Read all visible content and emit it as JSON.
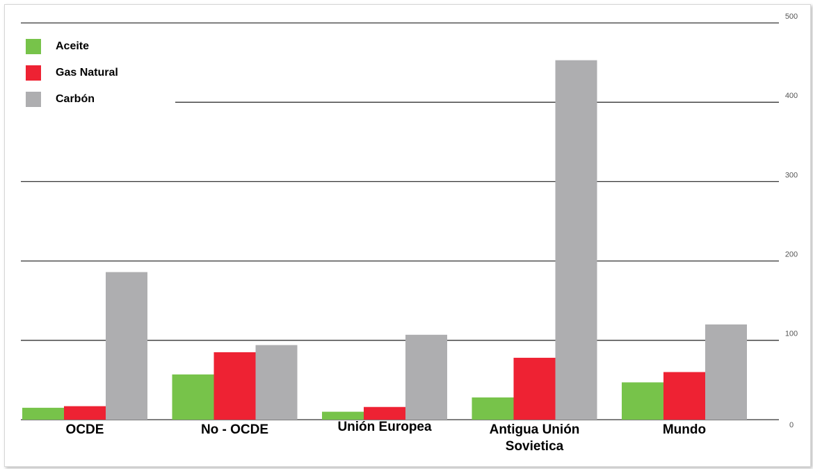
{
  "chart_data": {
    "type": "bar",
    "categories": [
      "OCDE",
      "No - OCDE",
      "Unión Europea",
      "Antigua Unión Sovietica",
      "Mundo"
    ],
    "series": [
      {
        "name": "Aceite",
        "color": "#77c34a",
        "values": [
          15,
          57,
          10,
          28,
          47
        ]
      },
      {
        "name": "Gas Natural",
        "color": "#ee2233",
        "values": [
          17,
          85,
          16,
          78,
          60
        ]
      },
      {
        "name": "Carbón",
        "color": "#aeaeb0",
        "values": [
          186,
          94,
          107,
          453,
          120
        ]
      }
    ],
    "ylim": [
      0,
      500
    ],
    "yticks": [
      0,
      100,
      200,
      300,
      400,
      500
    ],
    "grid": true,
    "legend": "top-left"
  }
}
